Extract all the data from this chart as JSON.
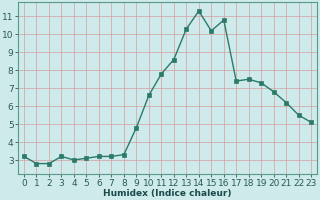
{
  "x": [
    0,
    1,
    2,
    3,
    4,
    5,
    6,
    7,
    8,
    9,
    10,
    11,
    12,
    13,
    14,
    15,
    16,
    17,
    18,
    19,
    20,
    21,
    22,
    23
  ],
  "y": [
    3.2,
    2.8,
    2.8,
    3.2,
    3.0,
    3.1,
    3.2,
    3.2,
    3.3,
    4.8,
    6.6,
    7.8,
    8.6,
    10.3,
    11.3,
    10.2,
    10.8,
    7.4,
    7.5,
    7.3,
    6.8,
    6.2,
    5.5,
    5.1
  ],
  "xlabel": "Humidex (Indice chaleur)",
  "line_color": "#2a7a6a",
  "marker_color": "#2a7a6a",
  "bg_color": "#ceeaea",
  "grid_color": "#b0d4d4",
  "axis_color": "#5a9a8a",
  "tick_color": "#2a5a5a",
  "xlabel_color": "#1a4a4a",
  "ylim": [
    2.2,
    11.8
  ],
  "xlim": [
    -0.5,
    23.5
  ],
  "yticks": [
    3,
    4,
    5,
    6,
    7,
    8,
    9,
    10,
    11
  ],
  "xticks": [
    0,
    1,
    2,
    3,
    4,
    5,
    6,
    7,
    8,
    9,
    10,
    11,
    12,
    13,
    14,
    15,
    16,
    17,
    18,
    19,
    20,
    21,
    22,
    23
  ],
  "xlabel_fontsize": 6.5,
  "tick_fontsize": 6.5,
  "line_width": 1.0,
  "marker_size": 2.5
}
